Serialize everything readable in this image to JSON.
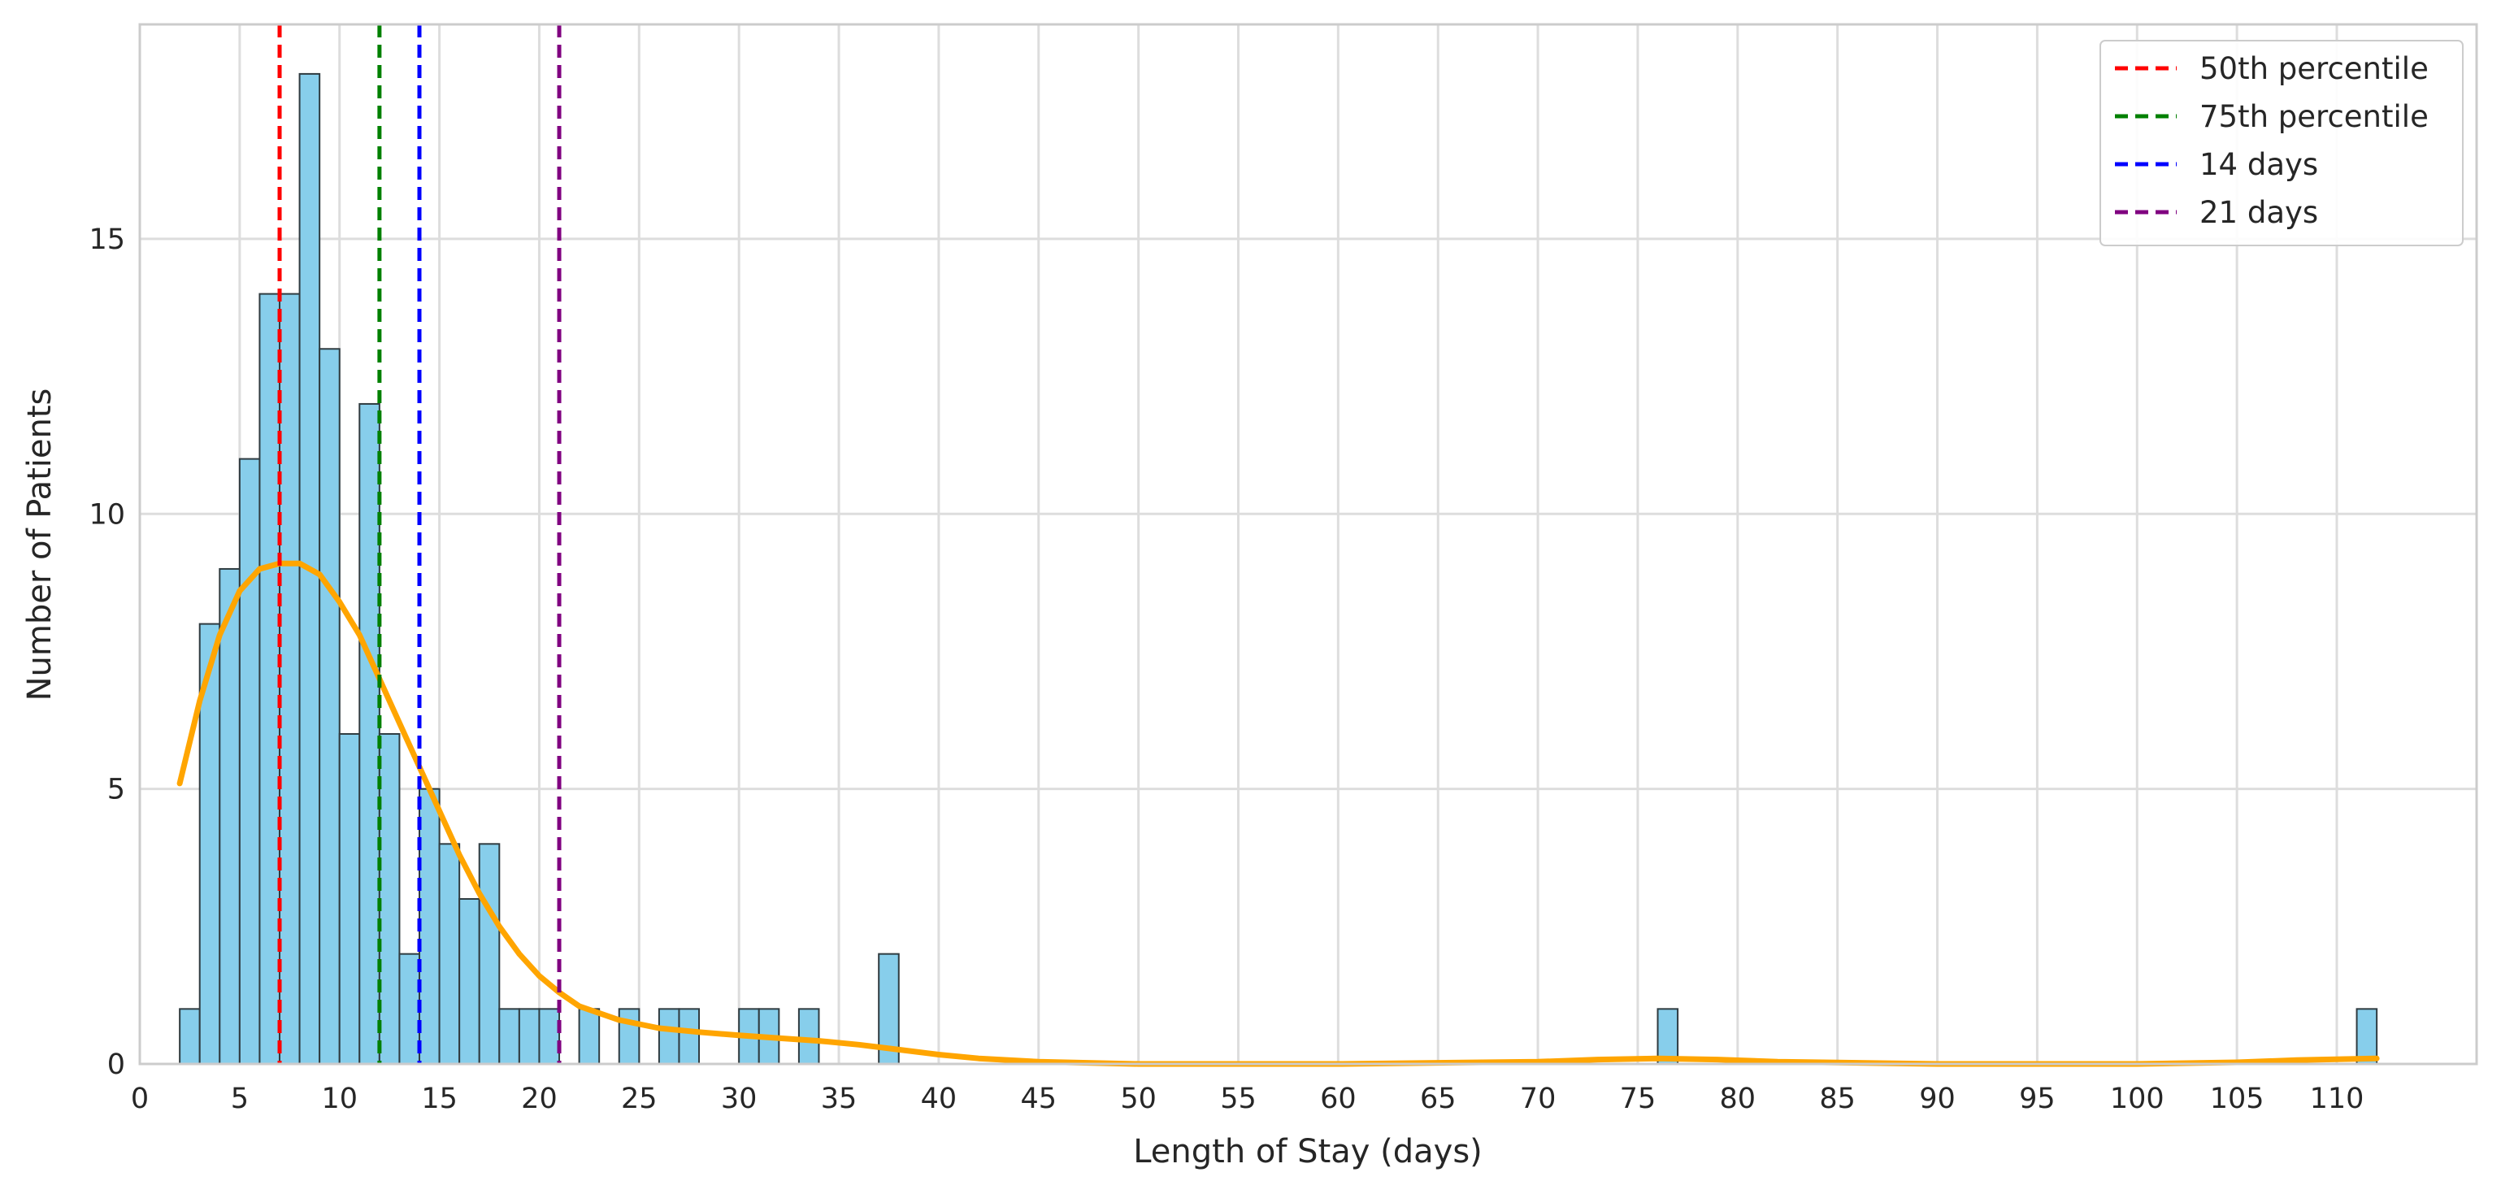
{
  "chart_data": {
    "type": "bar",
    "subtype": "histogram-with-kde",
    "title": "",
    "xlabel": "Length of Stay (days)",
    "ylabel": "Number of Patients",
    "xlim": [
      0,
      117
    ],
    "ylim": [
      0,
      18.9
    ],
    "xticks": [
      0,
      5,
      10,
      15,
      20,
      25,
      30,
      35,
      40,
      45,
      50,
      55,
      60,
      65,
      70,
      75,
      80,
      85,
      90,
      95,
      100,
      105,
      110
    ],
    "yticks": [
      0,
      5,
      10,
      15
    ],
    "grid": true,
    "bin_width": 1,
    "bins": [
      {
        "x": 2,
        "count": 1
      },
      {
        "x": 3,
        "count": 8
      },
      {
        "x": 4,
        "count": 9
      },
      {
        "x": 5,
        "count": 11
      },
      {
        "x": 6,
        "count": 14
      },
      {
        "x": 7,
        "count": 14
      },
      {
        "x": 8,
        "count": 18
      },
      {
        "x": 9,
        "count": 13
      },
      {
        "x": 10,
        "count": 6
      },
      {
        "x": 11,
        "count": 12
      },
      {
        "x": 12,
        "count": 6
      },
      {
        "x": 13,
        "count": 2
      },
      {
        "x": 14,
        "count": 5
      },
      {
        "x": 15,
        "count": 4
      },
      {
        "x": 16,
        "count": 3
      },
      {
        "x": 17,
        "count": 4
      },
      {
        "x": 18,
        "count": 1
      },
      {
        "x": 19,
        "count": 1
      },
      {
        "x": 20,
        "count": 1
      },
      {
        "x": 22,
        "count": 1
      },
      {
        "x": 24,
        "count": 1
      },
      {
        "x": 26,
        "count": 1
      },
      {
        "x": 27,
        "count": 1
      },
      {
        "x": 30,
        "count": 1
      },
      {
        "x": 31,
        "count": 1
      },
      {
        "x": 33,
        "count": 1
      },
      {
        "x": 37,
        "count": 2
      },
      {
        "x": 76,
        "count": 1
      },
      {
        "x": 111,
        "count": 1
      }
    ],
    "kde": {
      "x": [
        2,
        3,
        4,
        5,
        6,
        7,
        8,
        9,
        10,
        11,
        12,
        13,
        14,
        15,
        16,
        17,
        18,
        19,
        20,
        21,
        22,
        24,
        26,
        28,
        30,
        32,
        34,
        36,
        38,
        40,
        42,
        45,
        50,
        60,
        70,
        73,
        76,
        79,
        82,
        90,
        100,
        105,
        108,
        112
      ],
      "y": [
        5.1,
        6.6,
        7.8,
        8.6,
        9.0,
        9.1,
        9.1,
        8.9,
        8.4,
        7.8,
        7.0,
        6.2,
        5.4,
        4.6,
        3.8,
        3.1,
        2.5,
        2.0,
        1.6,
        1.3,
        1.05,
        0.8,
        0.65,
        0.58,
        0.52,
        0.47,
        0.42,
        0.35,
        0.26,
        0.17,
        0.1,
        0.04,
        0.0,
        0.0,
        0.04,
        0.08,
        0.1,
        0.08,
        0.04,
        0.0,
        0.0,
        0.03,
        0.07,
        0.1
      ]
    },
    "reference_lines": [
      {
        "name": "50th percentile",
        "x": 7,
        "color": "#ff0000"
      },
      {
        "name": "75th percentile",
        "x": 12,
        "color": "#008000"
      },
      {
        "name": "14 days",
        "x": 14,
        "color": "#0000ff"
      },
      {
        "name": "21 days",
        "x": 21,
        "color": "#800080"
      }
    ],
    "colors": {
      "bar_fill": "#87ceeb",
      "bar_edge": "#2f3b40",
      "kde_line": "#ffa500",
      "grid": "#dddddd",
      "axes_edge": "#cccccc"
    },
    "legend_position": "top-right"
  }
}
